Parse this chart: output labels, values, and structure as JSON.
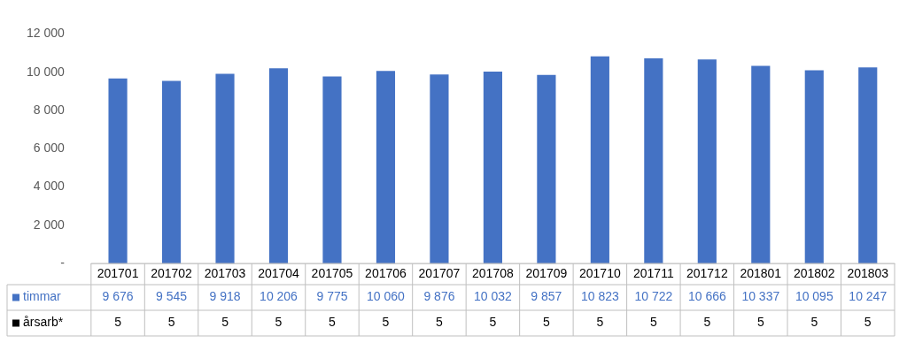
{
  "chart_data": {
    "type": "bar",
    "categories": [
      "201701",
      "201702",
      "201703",
      "201704",
      "201705",
      "201706",
      "201707",
      "201708",
      "201709",
      "201710",
      "201711",
      "201712",
      "201801",
      "201802",
      "201803"
    ],
    "series": [
      {
        "name": "timmar",
        "color": "#4472c4",
        "values": [
          9676,
          9545,
          9918,
          10206,
          9775,
          10060,
          9876,
          10032,
          9857,
          10823,
          10722,
          10666,
          10337,
          10095,
          10247
        ]
      },
      {
        "name": "årsarb*",
        "color": "#000000",
        "values": [
          5,
          5,
          5,
          5,
          5,
          5,
          5,
          5,
          5,
          5,
          5,
          5,
          5,
          5,
          5
        ]
      }
    ],
    "ylim": [
      0,
      12000
    ],
    "yticks": [
      {
        "value": 0,
        "label": "-"
      },
      {
        "value": 2000,
        "label": "2 000"
      },
      {
        "value": 4000,
        "label": "4 000"
      },
      {
        "value": 6000,
        "label": "6 000"
      },
      {
        "value": 8000,
        "label": "8 000"
      },
      {
        "value": 10000,
        "label": "10 000"
      },
      {
        "value": 12000,
        "label": "12 000"
      }
    ],
    "grid": false,
    "legend": "bottom",
    "data_labels": true
  }
}
